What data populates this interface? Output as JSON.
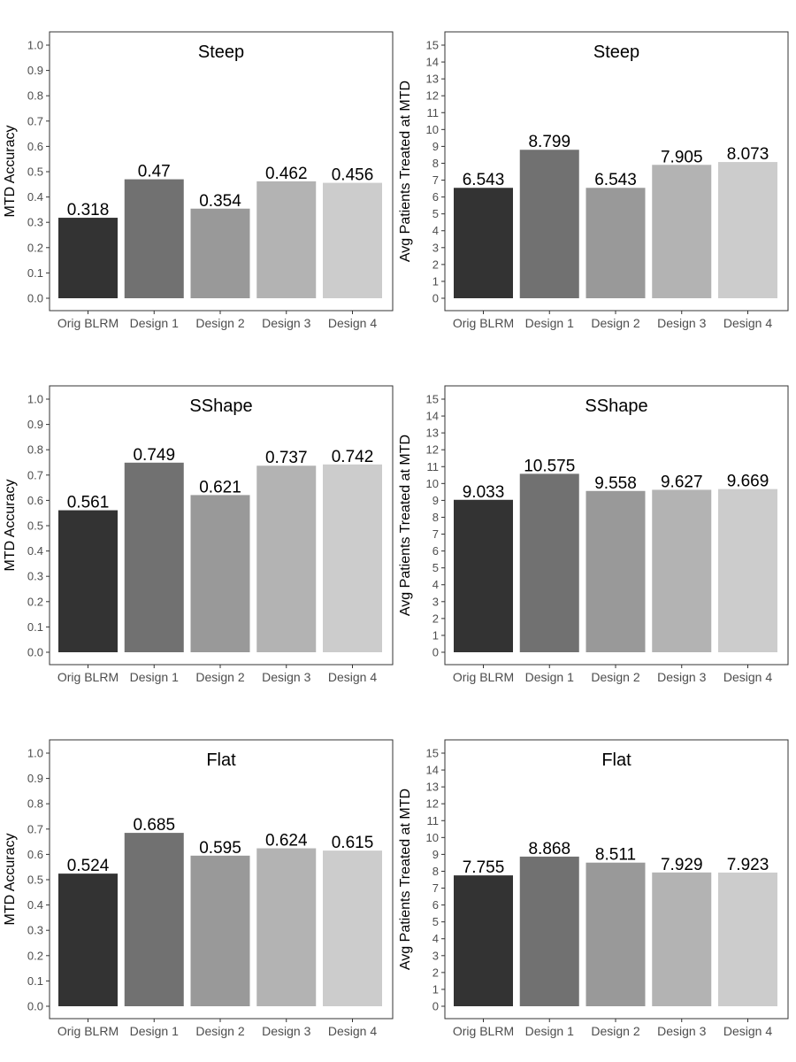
{
  "chart_data": [
    {
      "type": "bar",
      "title": "Steep",
      "ylabel": "MTD Accuracy",
      "xlabel": "",
      "categories": [
        "Orig BLRM",
        "Design 1",
        "Design 2",
        "Design 3",
        "Design 4"
      ],
      "values": [
        0.318,
        0.47,
        0.354,
        0.462,
        0.456
      ],
      "value_labels": [
        "0.318",
        "0.47",
        "0.354",
        "0.462",
        "0.456"
      ],
      "ylim": [
        0,
        1.0
      ],
      "yticks": [
        "0.0",
        "0.1",
        "0.2",
        "0.3",
        "0.4",
        "0.5",
        "0.6",
        "0.7",
        "0.8",
        "0.9",
        "1.0"
      ],
      "grid": false
    },
    {
      "type": "bar",
      "title": "Steep",
      "ylabel": "Avg Patients Treated at MTD",
      "xlabel": "",
      "categories": [
        "Orig BLRM",
        "Design 1",
        "Design 2",
        "Design 3",
        "Design 4"
      ],
      "values": [
        6.543,
        8.799,
        6.543,
        7.905,
        8.073
      ],
      "value_labels": [
        "6.543",
        "8.799",
        "6.543",
        "7.905",
        "8.073"
      ],
      "ylim": [
        0,
        15
      ],
      "yticks": [
        "0",
        "1",
        "2",
        "3",
        "4",
        "5",
        "6",
        "7",
        "8",
        "9",
        "10",
        "11",
        "12",
        "13",
        "14",
        "15"
      ],
      "grid": false
    },
    {
      "type": "bar",
      "title": "SShape",
      "ylabel": "MTD Accuracy",
      "xlabel": "",
      "categories": [
        "Orig BLRM",
        "Design 1",
        "Design 2",
        "Design 3",
        "Design 4"
      ],
      "values": [
        0.561,
        0.749,
        0.621,
        0.737,
        0.742
      ],
      "value_labels": [
        "0.561",
        "0.749",
        "0.621",
        "0.737",
        "0.742"
      ],
      "ylim": [
        0,
        1.0
      ],
      "yticks": [
        "0.0",
        "0.1",
        "0.2",
        "0.3",
        "0.4",
        "0.5",
        "0.6",
        "0.7",
        "0.8",
        "0.9",
        "1.0"
      ],
      "grid": false
    },
    {
      "type": "bar",
      "title": "SShape",
      "ylabel": "Avg Patients Treated at MTD",
      "xlabel": "",
      "categories": [
        "Orig BLRM",
        "Design 1",
        "Design 2",
        "Design 3",
        "Design 4"
      ],
      "values": [
        9.033,
        10.575,
        9.558,
        9.627,
        9.669
      ],
      "value_labels": [
        "9.033",
        "10.575",
        "9.558",
        "9.627",
        "9.669"
      ],
      "ylim": [
        0,
        15
      ],
      "yticks": [
        "0",
        "1",
        "2",
        "3",
        "4",
        "5",
        "6",
        "7",
        "8",
        "9",
        "10",
        "11",
        "12",
        "13",
        "14",
        "15"
      ],
      "grid": false
    },
    {
      "type": "bar",
      "title": "Flat",
      "ylabel": "MTD Accuracy",
      "xlabel": "",
      "categories": [
        "Orig BLRM",
        "Design 1",
        "Design 2",
        "Design 3",
        "Design 4"
      ],
      "values": [
        0.524,
        0.685,
        0.595,
        0.624,
        0.615
      ],
      "value_labels": [
        "0.524",
        "0.685",
        "0.595",
        "0.624",
        "0.615"
      ],
      "ylim": [
        0,
        1.0
      ],
      "yticks": [
        "0.0",
        "0.1",
        "0.2",
        "0.3",
        "0.4",
        "0.5",
        "0.6",
        "0.7",
        "0.8",
        "0.9",
        "1.0"
      ],
      "grid": false
    },
    {
      "type": "bar",
      "title": "Flat",
      "ylabel": "Avg Patients Treated at MTD",
      "xlabel": "",
      "categories": [
        "Orig BLRM",
        "Design 1",
        "Design 2",
        "Design 3",
        "Design 4"
      ],
      "values": [
        7.755,
        8.868,
        8.511,
        7.929,
        7.923
      ],
      "value_labels": [
        "7.755",
        "8.868",
        "8.511",
        "7.929",
        "7.923"
      ],
      "ylim": [
        0,
        15
      ],
      "yticks": [
        "0",
        "1",
        "2",
        "3",
        "4",
        "5",
        "6",
        "7",
        "8",
        "9",
        "10",
        "11",
        "12",
        "13",
        "14",
        "15"
      ],
      "grid": false
    }
  ],
  "colors": {
    "bars": [
      "#333333",
      "#717171",
      "#999999",
      "#b3b3b3",
      "#cccccc"
    ],
    "panel_border": "#333333",
    "tick_text": "#4d4d4d"
  }
}
